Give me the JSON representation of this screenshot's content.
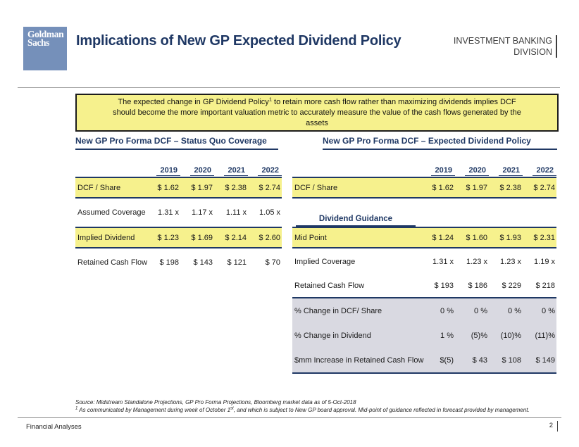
{
  "header": {
    "logo_line1": "Goldman",
    "logo_line2": "Sachs",
    "title": "Implications of New GP Expected Dividend Policy",
    "division_line1": "INVESTMENT BANKING",
    "division_line2": "DIVISION"
  },
  "banner": {
    "line1_pre": "The expected change in GP Dividend Policy",
    "line1_sup": "1",
    "line1_post": " to retain more cash flow rather than maximizing dividends implies DCF",
    "line2": "should become the more important valuation metric to accurately measure the value of the cash flows generated by the",
    "line3": "assets"
  },
  "left_table": {
    "title": "New GP Pro Forma DCF – Status Quo Coverage",
    "years": [
      "2019",
      "2020",
      "2021",
      "2022"
    ],
    "rows": [
      {
        "label": "DCF / Share",
        "highlight": true,
        "values": [
          "$ 1.62",
          "$ 1.97",
          "$ 2.38",
          "$ 2.74"
        ]
      },
      {
        "label": "Assumed Coverage",
        "highlight": false,
        "values": [
          "1.31 x",
          "1.17 x",
          "1.11 x",
          "1.05 x"
        ]
      },
      {
        "label": "Implied Dividend",
        "highlight": true,
        "values": [
          "$ 1.23",
          "$ 1.69",
          "$ 2.14",
          "$ 2.60"
        ]
      },
      {
        "label": "Retained Cash Flow",
        "highlight": false,
        "values": [
          "$ 198",
          "$ 143",
          "$ 121",
          "$ 70"
        ]
      }
    ]
  },
  "right_table": {
    "title": "New GP Pro Forma DCF – Expected Dividend Policy",
    "years": [
      "2019",
      "2020",
      "2021",
      "2022"
    ],
    "dcf_row": {
      "label": "DCF / Share",
      "highlight": true,
      "values": [
        "$ 1.62",
        "$ 1.97",
        "$ 2.38",
        "$ 2.74"
      ]
    },
    "guidance_header": "Dividend Guidance",
    "mid_point_row": {
      "label": "Mid Point",
      "highlight": true,
      "values": [
        "$ 1.24",
        "$ 1.60",
        "$ 1.93",
        "$ 2.31"
      ]
    },
    "implied_coverage_row": {
      "label": "Implied Coverage",
      "highlight": false,
      "values": [
        "1.31 x",
        "1.23 x",
        "1.23 x",
        "1.19 x"
      ]
    },
    "retained_row": {
      "label": "Retained Cash Flow",
      "highlight": false,
      "values": [
        "$ 193",
        "$ 186",
        "$ 229",
        "$ 218"
      ]
    },
    "gray_rows": [
      {
        "label": "% Change in DCF/ Share",
        "values": [
          "0 %",
          "0 %",
          "0 %",
          "0 %"
        ]
      },
      {
        "label": "% Change in Dividend",
        "values": [
          "1 %",
          "(5)%",
          "(10)%",
          "(11)%"
        ]
      },
      {
        "label": "$mm Increase in Retained Cash Flow",
        "values": [
          "$(5)",
          "$ 43",
          "$ 108",
          "$ 149"
        ]
      }
    ]
  },
  "footnotes": {
    "source": "Source: Midstream Standalone Projections, GP Pro Forma Projections, Bloomberg market data as of 5-Oct-2018",
    "note1_sup": "1",
    "note1_pre": " As communicated by Management during week of October 1",
    "note1_ord": "st",
    "note1_post": ", and which is subject to New GP board approval. Mid-point of guidance reflected in forecast provided by management."
  },
  "footer": {
    "left_label": "Financial Analyses",
    "page_number": "2"
  },
  "colors": {
    "navy": "#1F3864",
    "highlight_yellow": "#F6F18D",
    "gray_section": "#D9D9E1",
    "logo_blue": "#7590BA"
  }
}
